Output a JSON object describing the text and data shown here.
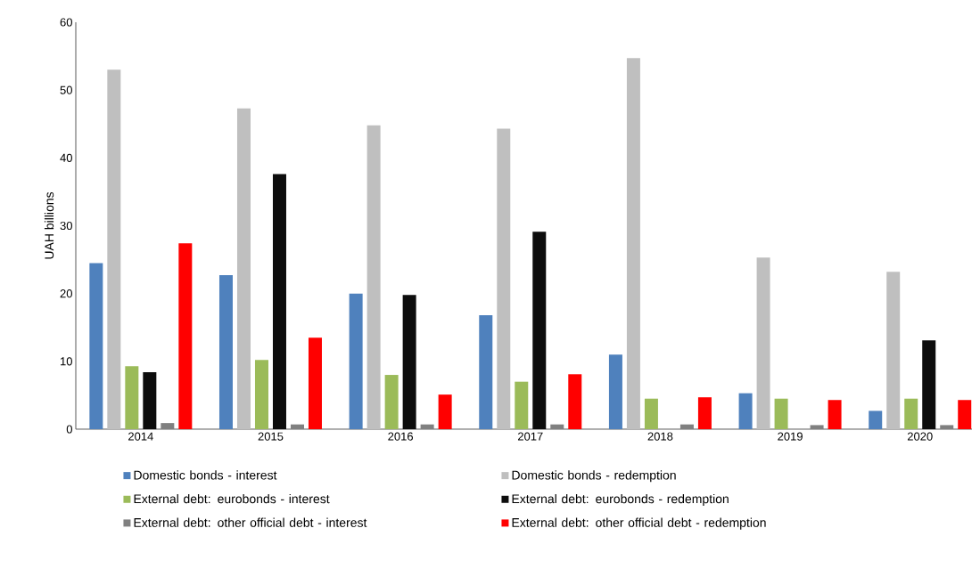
{
  "chart_data": {
    "type": "bar",
    "ylabel": "UAH billions",
    "categories": [
      "2014",
      "2015",
      "2016",
      "2017",
      "2018",
      "2019",
      "2020"
    ],
    "series": [
      {
        "name": "Domestic bonds - interest",
        "color": "#4f81bd",
        "values": [
          24.5,
          22.7,
          20,
          16.8,
          11,
          5.3,
          2.7
        ]
      },
      {
        "name": "Domestic bonds - redemption",
        "color": "#bfbfbf",
        "values": [
          53,
          47.3,
          44.8,
          44.3,
          54.7,
          25.3,
          23.2
        ]
      },
      {
        "name": "External debt: eurobonds - interest",
        "color": "#9bbb59",
        "values": [
          9.3,
          10.2,
          8,
          7,
          4.5,
          4.5,
          4.5
        ]
      },
      {
        "name": "External debt: eurobonds - redemption",
        "color": "#0d0d0d",
        "values": [
          8.4,
          37.6,
          19.8,
          29.1,
          null,
          null,
          13.1
        ]
      },
      {
        "name": "External debt: other official debt - interest",
        "color": "#808080",
        "values": [
          0.9,
          0.7,
          0.7,
          0.7,
          0.7,
          0.6,
          0.6
        ]
      },
      {
        "name": "External debt: other official debt - redemption",
        "color": "#ff0000",
        "values": [
          27.4,
          13.5,
          5.1,
          8.1,
          4.7,
          4.3,
          4.3
        ]
      }
    ],
    "ylim": [
      0,
      60
    ],
    "yticks": [
      0,
      10,
      20,
      30,
      40,
      50,
      60
    ],
    "grid": false,
    "legend": "bottom"
  }
}
